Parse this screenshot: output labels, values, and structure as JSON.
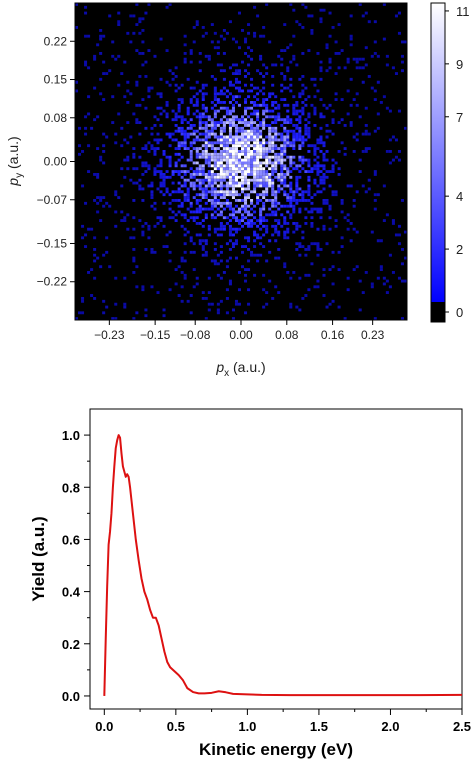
{
  "chart_data": [
    {
      "type": "heatmap",
      "xlabel": "p",
      "xlabel_sub": "x",
      "xlabel_unit": " (a.u.)",
      "ylabel": "p",
      "ylabel_sub": "y",
      "ylabel_unit": " (a.u.)",
      "xlim": [
        -0.29,
        0.29
      ],
      "ylim": [
        -0.29,
        0.29
      ],
      "x_ticks": [
        -0.23,
        -0.15,
        -0.08,
        0.0,
        0.08,
        0.16,
        0.23
      ],
      "x_tick_labels": [
        "−0.23",
        "−0.15",
        "−0.08",
        "0.00",
        "0.08",
        "0.16",
        "0.23"
      ],
      "y_ticks": [
        0.22,
        0.15,
        0.08,
        0.0,
        -0.07,
        -0.15,
        -0.22
      ],
      "y_tick_labels": [
        "0.22",
        "0.15",
        "0.08",
        "0.00",
        "−0.07",
        "−0.15",
        "−0.22"
      ],
      "distribution": {
        "center": [
          0.0,
          0.0
        ],
        "sigma": 0.085,
        "peak_count": 11,
        "background_rate": 0.06
      },
      "colorbar": {
        "min": 0,
        "max": 11.3,
        "ticks": [
          11,
          9,
          7,
          4,
          2,
          0
        ],
        "tick_labels": [
          "11",
          "9",
          "7",
          "4",
          "2",
          "0"
        ],
        "colors": [
          "#000000",
          "#0000ff",
          "#ffffff"
        ]
      },
      "grid": false,
      "background_color": "#000000"
    },
    {
      "type": "line",
      "xlabel": "Kinetic energy (eV)",
      "ylabel": "Yield (a.u.)",
      "xlim": [
        -0.1,
        2.5
      ],
      "ylim": [
        -0.05,
        1.1
      ],
      "x_ticks": [
        0.0,
        0.5,
        1.0,
        1.5,
        2.0,
        2.5
      ],
      "x_tick_labels": [
        "0.0",
        "0.5",
        "1.0",
        "1.5",
        "2.0",
        "2.5"
      ],
      "y_ticks": [
        0.0,
        0.2,
        0.4,
        0.6,
        0.8,
        1.0
      ],
      "y_tick_labels": [
        "0.0",
        "0.2",
        "0.4",
        "0.6",
        "0.8",
        "1.0"
      ],
      "grid": false,
      "series": [
        {
          "color": "#dd1111",
          "x": [
            0.0,
            0.01,
            0.02,
            0.03,
            0.04,
            0.05,
            0.06,
            0.07,
            0.08,
            0.09,
            0.1,
            0.11,
            0.12,
            0.13,
            0.14,
            0.15,
            0.16,
            0.17,
            0.18,
            0.19,
            0.2,
            0.21,
            0.22,
            0.24,
            0.26,
            0.28,
            0.3,
            0.32,
            0.34,
            0.36,
            0.38,
            0.4,
            0.42,
            0.44,
            0.46,
            0.48,
            0.5,
            0.52,
            0.55,
            0.58,
            0.62,
            0.66,
            0.7,
            0.75,
            0.8,
            0.85,
            0.9,
            1.0,
            1.1,
            1.3,
            1.5,
            1.7,
            2.0,
            2.2,
            2.5
          ],
          "y": [
            0.0,
            0.22,
            0.42,
            0.58,
            0.63,
            0.7,
            0.8,
            0.88,
            0.95,
            0.98,
            1.0,
            0.99,
            0.93,
            0.88,
            0.86,
            0.84,
            0.85,
            0.84,
            0.8,
            0.75,
            0.7,
            0.65,
            0.6,
            0.52,
            0.45,
            0.4,
            0.37,
            0.33,
            0.3,
            0.3,
            0.27,
            0.22,
            0.17,
            0.13,
            0.11,
            0.1,
            0.09,
            0.08,
            0.06,
            0.03,
            0.015,
            0.01,
            0.01,
            0.012,
            0.018,
            0.014,
            0.008,
            0.006,
            0.004,
            0.003,
            0.003,
            0.003,
            0.003,
            0.003,
            0.004
          ]
        }
      ]
    }
  ]
}
